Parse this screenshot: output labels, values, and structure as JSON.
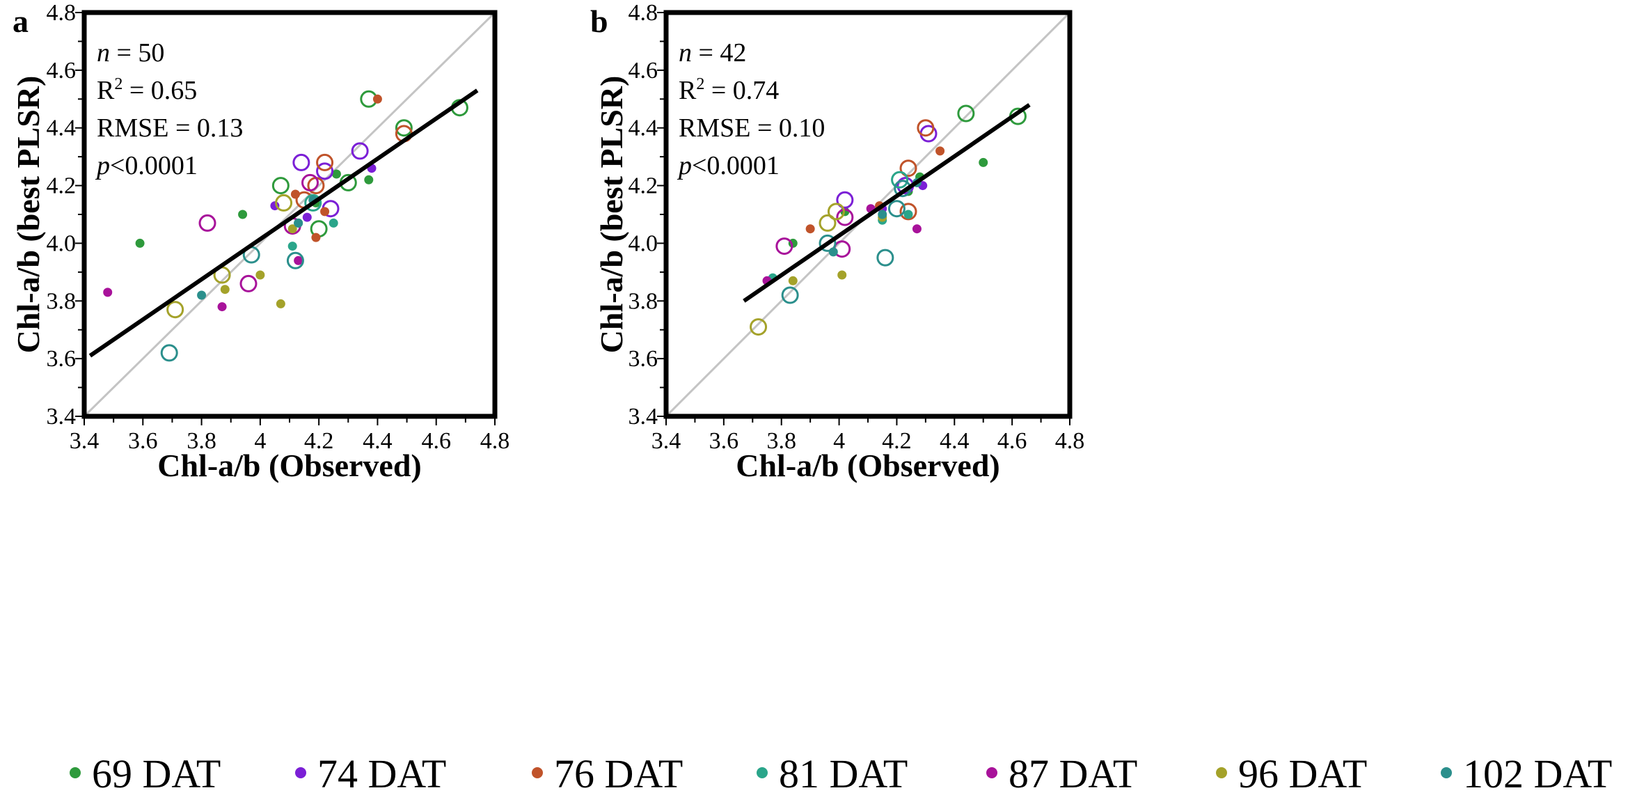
{
  "legend": [
    {
      "label": "69 DAT",
      "color": "#2e9a3c"
    },
    {
      "label": "74 DAT",
      "color": "#7b1fd6"
    },
    {
      "label": "76 DAT",
      "color": "#c0532a"
    },
    {
      "label": "81 DAT",
      "color": "#2aa58a"
    },
    {
      "label": "87 DAT",
      "color": "#a8129a"
    },
    {
      "label": "96 DAT",
      "color": "#a4a22a"
    },
    {
      "label": "102 DAT",
      "color": "#2b8f8c"
    }
  ],
  "chart_data": [
    {
      "panel": "a",
      "type": "scatter",
      "xlabel": "Chl-a/b (Observed)",
      "ylabel": "Chl-a/b (best PLSR)",
      "xlim": [
        3.4,
        4.8
      ],
      "ylim": [
        3.4,
        4.8
      ],
      "xticks": [
        "3.4",
        "3.6",
        "3.8",
        "4",
        "4.2",
        "4.4",
        "4.6",
        "4.8"
      ],
      "yticks": [
        "3.4",
        "3.6",
        "3.8",
        "4.0",
        "4.2",
        "4.4",
        "4.6",
        "4.8"
      ],
      "stats": {
        "n_label": "n",
        "n_value": " = 50",
        "r2_label": "R",
        "r2_sup": "2",
        "r2_value": " = 0.65",
        "rmse": "RMSE = 0.13",
        "p_label": "p",
        "p_value": "<0.0001"
      },
      "fit_line": {
        "x": [
          3.42,
          4.74
        ],
        "y": [
          3.61,
          4.53
        ]
      },
      "one_to_one": true,
      "points": [
        {
          "s": 0,
          "x": 3.59,
          "y": 4.0,
          "f": 1
        },
        {
          "s": 0,
          "x": 3.94,
          "y": 4.1,
          "f": 1
        },
        {
          "s": 0,
          "x": 4.07,
          "y": 4.2,
          "f": 0
        },
        {
          "s": 0,
          "x": 4.19,
          "y": 4.14,
          "f": 1
        },
        {
          "s": 0,
          "x": 4.26,
          "y": 4.24,
          "f": 1
        },
        {
          "s": 0,
          "x": 4.3,
          "y": 4.21,
          "f": 0
        },
        {
          "s": 0,
          "x": 4.37,
          "y": 4.22,
          "f": 1
        },
        {
          "s": 0,
          "x": 4.37,
          "y": 4.5,
          "f": 0
        },
        {
          "s": 0,
          "x": 4.49,
          "y": 4.4,
          "f": 0
        },
        {
          "s": 0,
          "x": 4.68,
          "y": 4.47,
          "f": 0
        },
        {
          "s": 0,
          "x": 4.2,
          "y": 4.05,
          "f": 0
        },
        {
          "s": 1,
          "x": 4.05,
          "y": 4.13,
          "f": 1
        },
        {
          "s": 1,
          "x": 4.14,
          "y": 4.28,
          "f": 0
        },
        {
          "s": 1,
          "x": 4.16,
          "y": 4.09,
          "f": 1
        },
        {
          "s": 1,
          "x": 4.22,
          "y": 4.25,
          "f": 0
        },
        {
          "s": 1,
          "x": 4.24,
          "y": 4.12,
          "f": 0
        },
        {
          "s": 1,
          "x": 4.34,
          "y": 4.32,
          "f": 0
        },
        {
          "s": 1,
          "x": 4.38,
          "y": 4.26,
          "f": 1
        },
        {
          "s": 2,
          "x": 4.12,
          "y": 4.17,
          "f": 1
        },
        {
          "s": 2,
          "x": 4.15,
          "y": 4.15,
          "f": 0
        },
        {
          "s": 2,
          "x": 4.19,
          "y": 4.02,
          "f": 1
        },
        {
          "s": 2,
          "x": 4.19,
          "y": 4.2,
          "f": 0
        },
        {
          "s": 2,
          "x": 4.22,
          "y": 4.28,
          "f": 0
        },
        {
          "s": 2,
          "x": 4.22,
          "y": 4.11,
          "f": 1
        },
        {
          "s": 2,
          "x": 4.4,
          "y": 4.5,
          "f": 1
        },
        {
          "s": 2,
          "x": 4.49,
          "y": 4.38,
          "f": 0
        },
        {
          "s": 3,
          "x": 4.11,
          "y": 3.99,
          "f": 1
        },
        {
          "s": 3,
          "x": 4.13,
          "y": 4.07,
          "f": 1
        },
        {
          "s": 3,
          "x": 4.18,
          "y": 4.14,
          "f": 0
        },
        {
          "s": 3,
          "x": 4.25,
          "y": 4.07,
          "f": 1
        },
        {
          "s": 4,
          "x": 3.48,
          "y": 3.83,
          "f": 1
        },
        {
          "s": 4,
          "x": 3.82,
          "y": 4.07,
          "f": 0
        },
        {
          "s": 4,
          "x": 3.87,
          "y": 3.78,
          "f": 1
        },
        {
          "s": 4,
          "x": 3.96,
          "y": 3.86,
          "f": 0
        },
        {
          "s": 4,
          "x": 4.11,
          "y": 4.06,
          "f": 0
        },
        {
          "s": 4,
          "x": 4.13,
          "y": 3.94,
          "f": 1
        },
        {
          "s": 4,
          "x": 4.17,
          "y": 4.21,
          "f": 0
        },
        {
          "s": 5,
          "x": 3.71,
          "y": 3.77,
          "f": 0
        },
        {
          "s": 5,
          "x": 3.87,
          "y": 3.89,
          "f": 0
        },
        {
          "s": 5,
          "x": 3.88,
          "y": 3.84,
          "f": 1
        },
        {
          "s": 5,
          "x": 4.0,
          "y": 3.89,
          "f": 1
        },
        {
          "s": 5,
          "x": 4.07,
          "y": 3.79,
          "f": 1
        },
        {
          "s": 5,
          "x": 4.08,
          "y": 4.14,
          "f": 0
        },
        {
          "s": 5,
          "x": 4.11,
          "y": 4.05,
          "f": 1
        },
        {
          "s": 6,
          "x": 3.69,
          "y": 3.62,
          "f": 0
        },
        {
          "s": 6,
          "x": 3.8,
          "y": 3.82,
          "f": 1
        },
        {
          "s": 6,
          "x": 3.97,
          "y": 3.96,
          "f": 0
        },
        {
          "s": 6,
          "x": 4.12,
          "y": 3.94,
          "f": 0
        },
        {
          "s": 6,
          "x": 4.13,
          "y": 4.07,
          "f": 1
        },
        {
          "s": 6,
          "x": 4.18,
          "y": 4.15,
          "f": 1
        }
      ]
    },
    {
      "panel": "b",
      "type": "scatter",
      "xlabel": "Chl-a/b (Observed)",
      "ylabel": "Chl-a/b (best PLSR)",
      "xlim": [
        3.4,
        4.8
      ],
      "ylim": [
        3.4,
        4.8
      ],
      "xticks": [
        "3.4",
        "3.6",
        "3.8",
        "4",
        "4.2",
        "4.4",
        "4.6",
        "4.8"
      ],
      "yticks": [
        "3.4",
        "3.6",
        "3.8",
        "4.0",
        "4.2",
        "4.4",
        "4.6",
        "4.8"
      ],
      "stats": {
        "n_label": "n",
        "n_value": " = 42",
        "r2_label": "R",
        "r2_sup": "2",
        "r2_value": " = 0.74",
        "rmse": "RMSE = 0.10",
        "p_label": "p",
        "p_value": "<0.0001"
      },
      "fit_line": {
        "x": [
          3.67,
          4.66
        ],
        "y": [
          3.8,
          4.48
        ]
      },
      "one_to_one": true,
      "points": [
        {
          "s": 0,
          "x": 3.84,
          "y": 4.0,
          "f": 1
        },
        {
          "s": 0,
          "x": 4.02,
          "y": 4.11,
          "f": 1
        },
        {
          "s": 0,
          "x": 4.24,
          "y": 4.18,
          "f": 1
        },
        {
          "s": 0,
          "x": 4.28,
          "y": 4.23,
          "f": 1
        },
        {
          "s": 0,
          "x": 4.44,
          "y": 4.45,
          "f": 0
        },
        {
          "s": 0,
          "x": 4.5,
          "y": 4.28,
          "f": 1
        },
        {
          "s": 0,
          "x": 4.62,
          "y": 4.44,
          "f": 0
        },
        {
          "s": 1,
          "x": 4.02,
          "y": 4.15,
          "f": 0
        },
        {
          "s": 1,
          "x": 4.15,
          "y": 4.12,
          "f": 1
        },
        {
          "s": 1,
          "x": 4.23,
          "y": 4.2,
          "f": 0
        },
        {
          "s": 1,
          "x": 4.29,
          "y": 4.2,
          "f": 1
        },
        {
          "s": 1,
          "x": 4.31,
          "y": 4.38,
          "f": 0
        },
        {
          "s": 2,
          "x": 3.9,
          "y": 4.05,
          "f": 1
        },
        {
          "s": 2,
          "x": 4.14,
          "y": 4.13,
          "f": 1
        },
        {
          "s": 2,
          "x": 4.24,
          "y": 4.26,
          "f": 0
        },
        {
          "s": 2,
          "x": 4.24,
          "y": 4.11,
          "f": 0
        },
        {
          "s": 2,
          "x": 4.3,
          "y": 4.4,
          "f": 0
        },
        {
          "s": 2,
          "x": 4.35,
          "y": 4.32,
          "f": 1
        },
        {
          "s": 3,
          "x": 3.77,
          "y": 3.88,
          "f": 1
        },
        {
          "s": 3,
          "x": 4.15,
          "y": 4.08,
          "f": 1
        },
        {
          "s": 3,
          "x": 4.21,
          "y": 4.22,
          "f": 0
        },
        {
          "s": 3,
          "x": 4.24,
          "y": 4.1,
          "f": 1
        },
        {
          "s": 4,
          "x": 3.75,
          "y": 3.87,
          "f": 1
        },
        {
          "s": 4,
          "x": 3.81,
          "y": 3.99,
          "f": 0
        },
        {
          "s": 4,
          "x": 4.01,
          "y": 3.98,
          "f": 0
        },
        {
          "s": 4,
          "x": 4.02,
          "y": 4.09,
          "f": 0
        },
        {
          "s": 4,
          "x": 4.11,
          "y": 4.12,
          "f": 1
        },
        {
          "s": 4,
          "x": 4.27,
          "y": 4.05,
          "f": 1
        },
        {
          "s": 5,
          "x": 3.72,
          "y": 3.71,
          "f": 0
        },
        {
          "s": 5,
          "x": 3.84,
          "y": 3.87,
          "f": 1
        },
        {
          "s": 5,
          "x": 3.96,
          "y": 4.07,
          "f": 0
        },
        {
          "s": 5,
          "x": 3.99,
          "y": 4.11,
          "f": 0
        },
        {
          "s": 5,
          "x": 4.01,
          "y": 3.89,
          "f": 1
        },
        {
          "s": 5,
          "x": 4.15,
          "y": 4.09,
          "f": 1
        },
        {
          "s": 6,
          "x": 3.83,
          "y": 3.82,
          "f": 0
        },
        {
          "s": 6,
          "x": 3.96,
          "y": 4.0,
          "f": 0
        },
        {
          "s": 6,
          "x": 3.98,
          "y": 3.97,
          "f": 1
        },
        {
          "s": 6,
          "x": 4.16,
          "y": 3.95,
          "f": 0
        },
        {
          "s": 6,
          "x": 4.2,
          "y": 4.12,
          "f": 0
        },
        {
          "s": 6,
          "x": 4.22,
          "y": 4.19,
          "f": 0
        },
        {
          "s": 6,
          "x": 4.15,
          "y": 4.1,
          "f": 1
        },
        {
          "s": 6,
          "x": 4.27,
          "y": 4.21,
          "f": 1
        }
      ]
    }
  ]
}
